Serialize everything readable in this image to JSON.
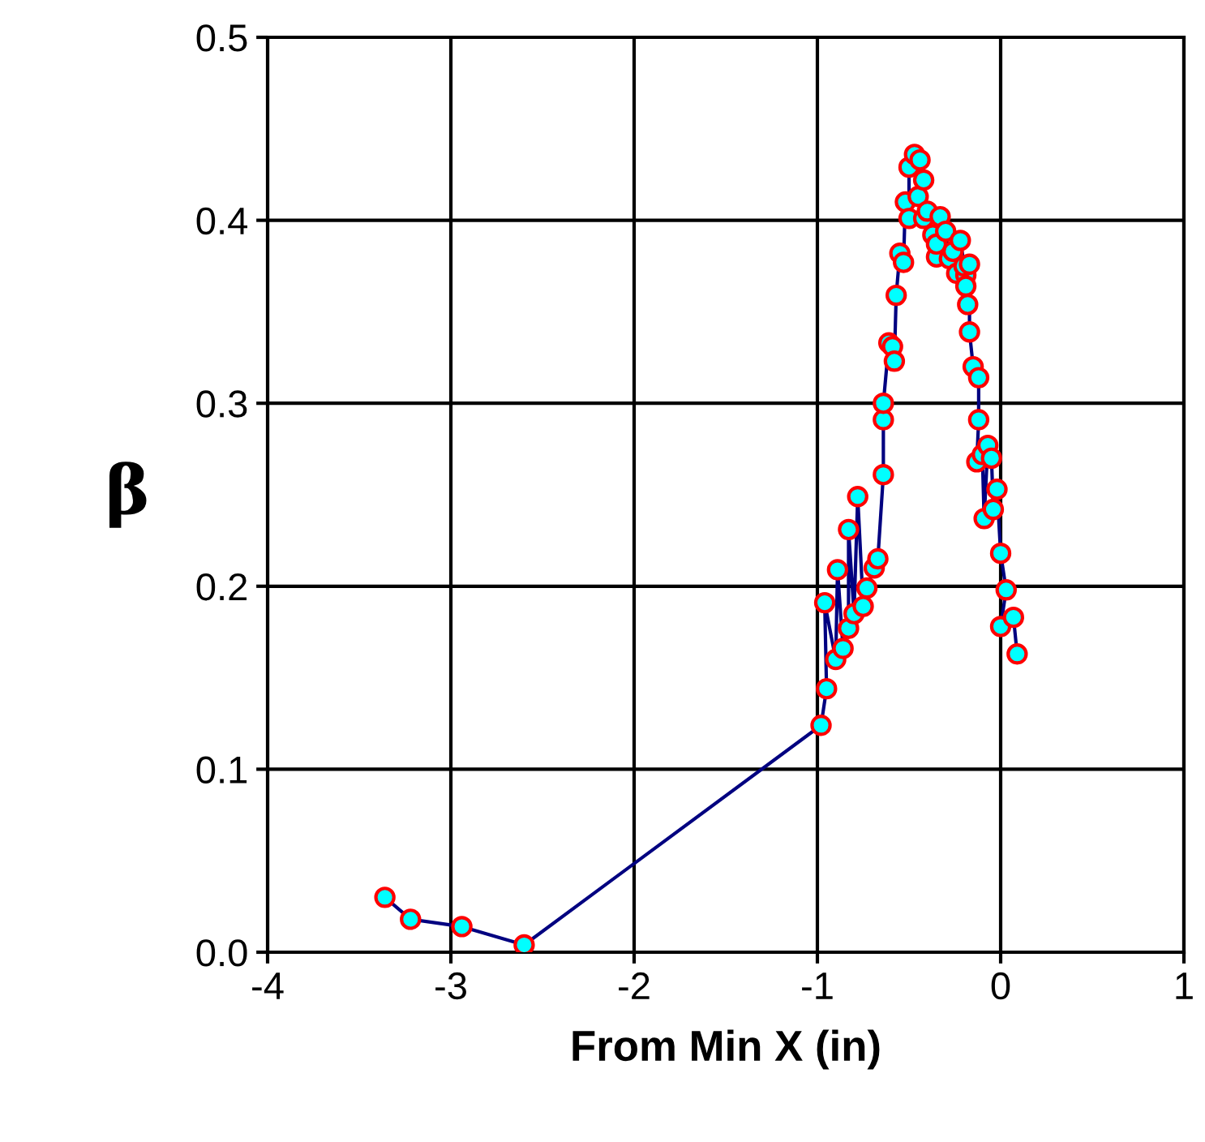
{
  "chart_data": {
    "type": "line",
    "xlabel": "From Min X (in)",
    "ylabel": "β",
    "xlim": [
      -4,
      1
    ],
    "xticks": [
      -4,
      -3,
      -2,
      -1,
      0,
      1
    ],
    "ylim": [
      0,
      0.5
    ],
    "yticks": [
      {
        "value": 0,
        "label": "0.0"
      },
      {
        "value": 0.1,
        "label": "0.1"
      },
      {
        "value": 0.2,
        "label": "0.2"
      },
      {
        "value": 0.3,
        "label": "0.3"
      },
      {
        "value": 0.4,
        "label": "0.4"
      },
      {
        "value": 0.5,
        "label": "0.5"
      }
    ],
    "grid": true,
    "marker": "circle",
    "line_style": "solid",
    "series": [
      {
        "color": "#000080",
        "x": [
          -3.36,
          -3.22,
          -2.94,
          -2.6,
          -0.98,
          -0.95,
          -0.96,
          -0.9,
          -0.89,
          -0.86,
          -0.83,
          -0.83,
          -0.8,
          -0.78,
          -0.75,
          -0.73,
          -0.69,
          -0.67,
          -0.64,
          -0.64,
          -0.64,
          -0.61,
          -0.59,
          -0.58,
          -0.57,
          -0.55,
          -0.53,
          -0.52,
          -0.5,
          -0.5,
          -0.47,
          -0.45,
          -0.44,
          -0.42,
          -0.42,
          -0.4,
          -0.37,
          -0.35,
          -0.33,
          -0.35,
          -0.3,
          -0.28,
          -0.26,
          -0.24,
          -0.22,
          -0.19,
          -0.19,
          -0.18,
          -0.2,
          -0.17,
          -0.17,
          -0.15,
          -0.12,
          -0.12,
          -0.13,
          -0.1,
          -0.09,
          -0.07,
          -0.05,
          -0.04,
          -0.02,
          0.0,
          0.03,
          0.0,
          0.07,
          0.09
        ],
        "values": [
          0.03,
          0.018,
          0.014,
          0.004,
          0.124,
          0.144,
          0.191,
          0.16,
          0.209,
          0.166,
          0.177,
          0.231,
          0.185,
          0.249,
          0.189,
          0.199,
          0.21,
          0.215,
          0.261,
          0.291,
          0.3,
          0.333,
          0.331,
          0.323,
          0.359,
          0.382,
          0.377,
          0.41,
          0.401,
          0.429,
          0.436,
          0.413,
          0.433,
          0.422,
          0.401,
          0.405,
          0.392,
          0.38,
          0.402,
          0.387,
          0.394,
          0.379,
          0.383,
          0.371,
          0.389,
          0.37,
          0.364,
          0.354,
          0.375,
          0.376,
          0.339,
          0.32,
          0.314,
          0.291,
          0.268,
          0.272,
          0.237,
          0.277,
          0.27,
          0.242,
          0.253,
          0.218,
          0.198,
          0.178,
          0.183,
          0.163
        ]
      }
    ]
  }
}
